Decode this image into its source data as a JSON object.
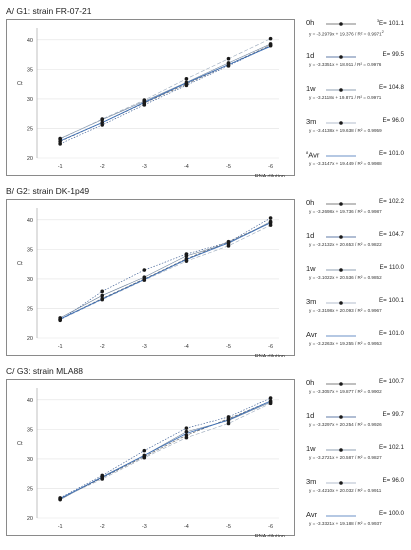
{
  "chart_data": [
    {
      "type": "scatter",
      "title": "A/ G1: strain FR-07-21",
      "ylabel": "Ct",
      "xlabel": "RNA dilution",
      "x_ticks": [
        "-1",
        "-2",
        "-3",
        "-4",
        "-5",
        "-6"
      ],
      "y_ticks": [
        "20",
        "25",
        "30",
        "35",
        "40"
      ],
      "ylim": [
        20,
        42
      ],
      "x": [
        1,
        2,
        3,
        4,
        5,
        6
      ],
      "series": [
        {
          "name": "0h",
          "values": [
            22.8,
            26.0,
            29.3,
            32.5,
            35.8,
            39.1
          ],
          "E": "E= 101.1",
          "equation": "y = -3.2979x + 19.376 / R² = 0.9971"
        },
        {
          "name": "1d",
          "values": [
            22.4,
            25.6,
            29.0,
            32.3,
            35.6,
            39.0
          ],
          "E": "E= 99.5",
          "equation": "y = -3.3351x + 18.911 / R² = 0.9976"
        },
        {
          "name": "1w",
          "values": [
            23.3,
            26.5,
            29.6,
            32.8,
            36.1,
            39.3
          ],
          "E": "E= 104.8",
          "equation": "y = -3.2118x + 19.871 / R² = 0.9971"
        },
        {
          "name": "3m",
          "values": [
            23.2,
            26.6,
            29.8,
            33.4,
            36.8,
            40.2
          ],
          "E": "E= 96.0",
          "equation": "y = -3.4138x + 19.638 / R² = 0.9959"
        },
        {
          "name": "Avr",
          "values": [
            22.9,
            26.0,
            29.4,
            32.7,
            35.8,
            38.9
          ],
          "E": "E= 101.0",
          "equation": "y = -3.3147x + 19.449 / R² = 0.9988"
        }
      ],
      "label_prefix": {
        "0h": "",
        "Avr": "8"
      },
      "e_prefix": {
        "0h": "3"
      },
      "eq_suffix": {
        "0h": "2"
      }
    },
    {
      "type": "scatter",
      "title": "B/ G2: strain DK-1p49",
      "ylabel": "Ct",
      "xlabel": "RNA dilution",
      "x_ticks": [
        "-1",
        "-2",
        "-3",
        "-4",
        "-5",
        "-6"
      ],
      "y_ticks": [
        "20",
        "25",
        "30",
        "35",
        "40"
      ],
      "ylim": [
        20,
        42
      ],
      "x": [
        1,
        2,
        3,
        4,
        5,
        6
      ],
      "series": [
        {
          "name": "0h",
          "values": [
            23.2,
            26.7,
            30.0,
            33.4,
            36.3,
            39.5
          ],
          "E": "E= 102.2",
          "equation": "y = -3.2698x + 19.736 / R² = 0.9987"
        },
        {
          "name": "1d",
          "values": [
            23.0,
            27.9,
            31.5,
            34.2,
            36.2,
            40.3
          ],
          "E": "E= 104.7",
          "equation": "y = -3.2132x + 20.653 / R² = 0.9822"
        },
        {
          "name": "1w",
          "values": [
            23.4,
            27.2,
            30.3,
            33.9,
            36.0,
            39.7
          ],
          "E": "E= 110.0",
          "equation": "y = -3.1022x + 20.536 / R² = 0.9852"
        },
        {
          "name": "3m",
          "values": [
            23.1,
            26.5,
            29.8,
            33.0,
            35.6,
            39.1
          ],
          "E": "E= 100.1",
          "equation": "y = -3.3198x + 20.093 / R² = 0.9967"
        },
        {
          "name": "Avr",
          "values": [
            23.2,
            26.6,
            29.9,
            33.3,
            36.1,
            39.5
          ],
          "E": "E= 101.0",
          "equation": "y = -3.2263x + 19.255 / R² = 0.9953"
        }
      ],
      "label_prefix": {},
      "e_prefix": {},
      "eq_suffix": {}
    },
    {
      "type": "scatter",
      "title": "C/ G3: strain MLA88",
      "ylabel": "Ct",
      "xlabel": "RNA dilution",
      "x_ticks": [
        "-1",
        "-2",
        "-3",
        "-4",
        "-5",
        "-6"
      ],
      "y_ticks": [
        "20",
        "25",
        "30",
        "35",
        "40"
      ],
      "ylim": [
        20,
        42
      ],
      "x": [
        1,
        2,
        3,
        4,
        5,
        6
      ],
      "series": [
        {
          "name": "0h",
          "values": [
            23.2,
            26.8,
            30.4,
            34.0,
            36.8,
            39.8
          ],
          "E": "E= 100.7",
          "equation": "y = -3.3057x + 19.877 / R² = 0.9902"
        },
        {
          "name": "1d",
          "values": [
            23.4,
            27.2,
            31.4,
            35.2,
            37.1,
            40.3
          ],
          "E": "E= 99.7",
          "equation": "y = -3.3297x + 20.254 / R² = 0.9926"
        },
        {
          "name": "1w",
          "values": [
            23.1,
            27.0,
            30.6,
            34.6,
            36.5,
            39.6
          ],
          "E": "E= 102.1",
          "equation": "y = -3.2721x + 20.587 / R² = 0.9827"
        },
        {
          "name": "3m",
          "values": [
            23.3,
            26.6,
            30.2,
            33.6,
            36.0,
            39.4
          ],
          "E": "E= 96.0",
          "equation": "y = -3.4210x + 20.032 / R² = 0.9911"
        },
        {
          "name": "Avr",
          "values": [
            23.3,
            26.9,
            30.6,
            34.3,
            36.6,
            39.8
          ],
          "E": "E= 100.0",
          "equation": "y = -3.3321x + 19.188 / R² = 0.9937"
        }
      ],
      "label_prefix": {},
      "e_prefix": {},
      "eq_suffix": {}
    }
  ],
  "colors": {
    "series_lines": [
      "#555555",
      "#2b4f8a",
      "#6a7f99",
      "#9aa9bb",
      "#3a6db5"
    ],
    "points": "#1a1a1a",
    "frame": "#8a8a8a"
  }
}
